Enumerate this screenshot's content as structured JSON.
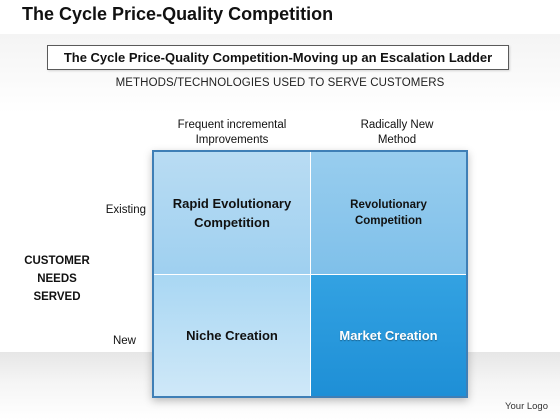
{
  "title": "The Cycle Price-Quality Competition",
  "subtitle": "The Cycle Price-Quality Competition-Moving up an Escalation Ladder",
  "methods_label": "METHODS/TECHNOLOGIES USED TO SERVE CUSTOMERS",
  "columns": [
    {
      "line1": "Frequent incremental",
      "line2": "Improvements"
    },
    {
      "line1": "Radically New",
      "line2": "Method"
    }
  ],
  "rows": [
    "Existing",
    "New"
  ],
  "side_label": [
    "CUSTOMER",
    "NEEDS",
    "SERVED"
  ],
  "cells": {
    "top_left": [
      "Rapid Evolutionary",
      "Competition"
    ],
    "top_right": [
      "Revolutionary",
      "Competition"
    ],
    "bottom_left": "Niche Creation",
    "bottom_right": "Market Creation"
  },
  "logo": "Your Logo",
  "colors": {
    "border": "#3f7fb6",
    "cell_light": "#b9dcf3",
    "cell_medium": "#98cdee",
    "cell_highlight": "#2a9ae0"
  }
}
